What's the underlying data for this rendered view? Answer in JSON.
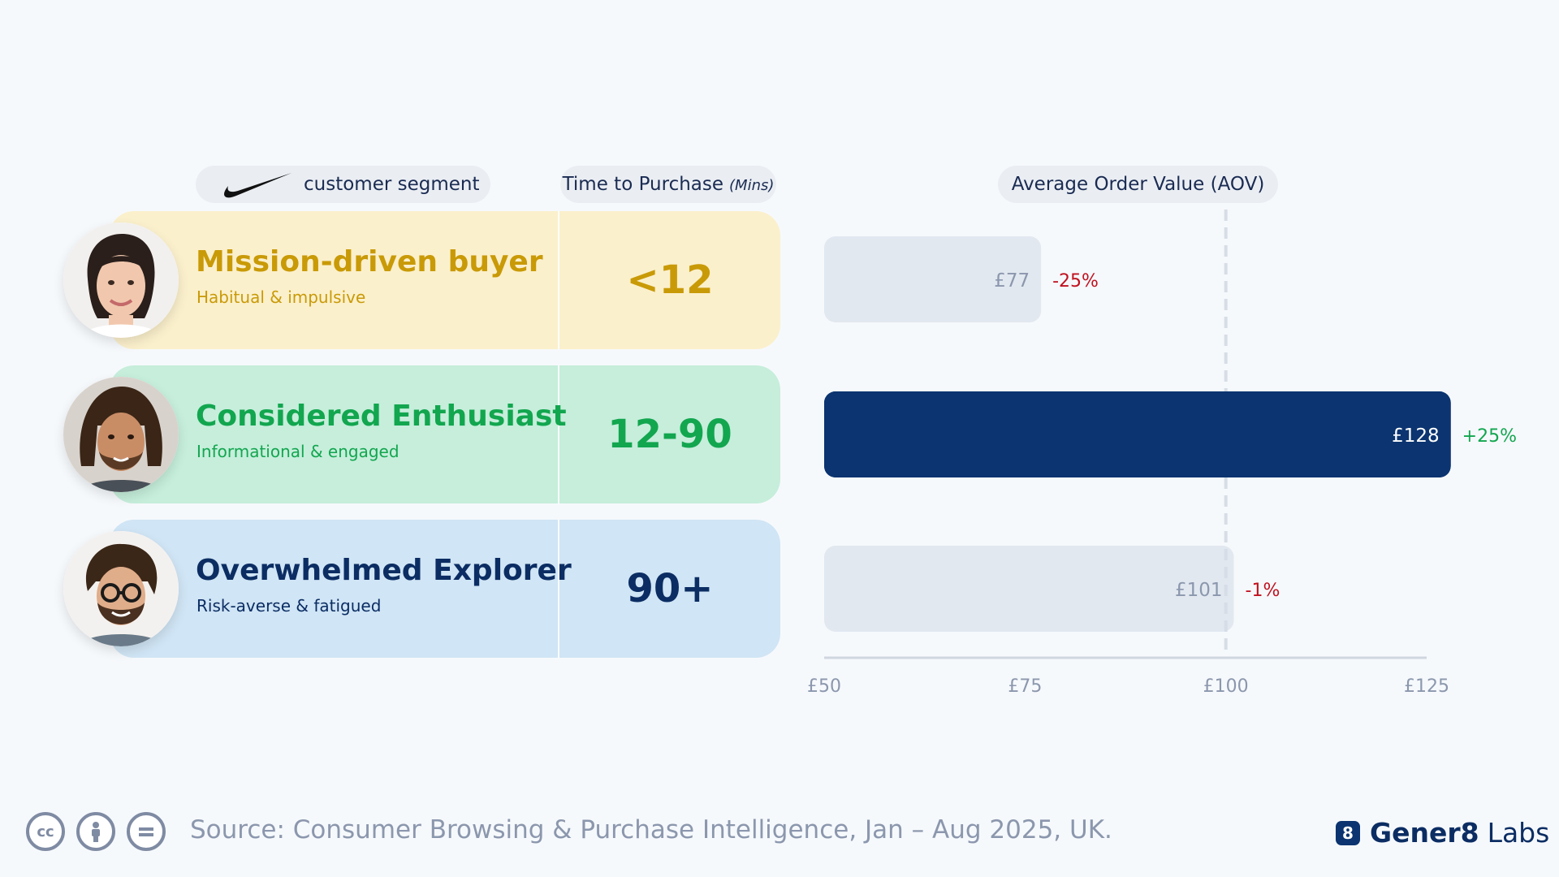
{
  "headers": {
    "segment_label": "customer segment",
    "time_label": "Time to Purchase",
    "time_unit": "(Mins)",
    "aov_label": "Average Order Value (AOV)"
  },
  "segments": [
    {
      "name": "Mission-driven buyer",
      "subtitle": "Habitual & impulsive",
      "time": "<12",
      "color": "#c99a07",
      "bg": "#fbf0cc"
    },
    {
      "name": "Considered Enthusiast",
      "subtitle": "Informational & engaged",
      "time": "12-90",
      "color": "#12a64f",
      "bg": "#c6eedb"
    },
    {
      "name": "Overwhelmed Explorer",
      "subtitle": "Risk-averse & fatigued",
      "time": "90+",
      "color": "#0b2d63",
      "bg": "#d0e5f5"
    }
  ],
  "chart_data": {
    "type": "bar",
    "orientation": "horizontal",
    "categories": [
      "Mission-driven buyer",
      "Considered Enthusiast",
      "Overwhelmed Explorer"
    ],
    "values": [
      77,
      128,
      101
    ],
    "value_labels": [
      "£77",
      "£128",
      "£101"
    ],
    "deltas": [
      "-25%",
      "+25%",
      "-1%"
    ],
    "delta_colors": [
      "#c0111f",
      "#12a64f",
      "#c0111f"
    ],
    "bar_colors": [
      "#e2e8f0",
      "#0b3470",
      "#e2e8f0"
    ],
    "label_colors": [
      "#8b97ad",
      "#ffffff",
      "#8b97ad"
    ],
    "xlim": [
      50,
      125
    ],
    "xticks": [
      50,
      75,
      100,
      125
    ],
    "xtick_labels": [
      "£50",
      "£75",
      "£100",
      "£125"
    ],
    "reference_line": 100,
    "grid": false
  },
  "footer": {
    "license_cc": "cc",
    "source": "Source: Consumer Browsing & Purchase Intelligence, Jan – Aug 2025, UK.",
    "brand_mark": "8",
    "brand_name": "Gener8",
    "brand_suffix": "Labs"
  },
  "icons": [
    "nike-swoosh-icon",
    "cc-icon",
    "attribution-icon",
    "no-derivatives-icon",
    "gener8-logo-icon"
  ]
}
